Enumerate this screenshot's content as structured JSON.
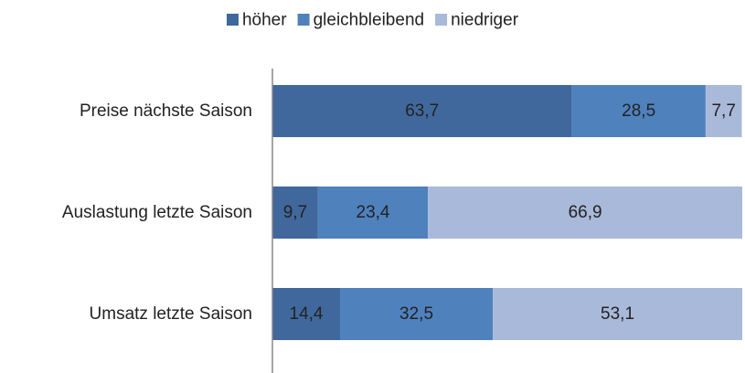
{
  "chart_data": {
    "type": "stacked_barh",
    "categories": [
      "Preise nächste Saison",
      "Auslastung letzte Saison",
      "Umsatz letzte Saison"
    ],
    "series": [
      {
        "name": "höher",
        "color": "#41689c",
        "label_color": "#ffffff",
        "values": [
          63.7,
          9.7,
          14.4
        ],
        "value_labels": [
          "63,7",
          "9,7",
          "14,4"
        ]
      },
      {
        "name": "gleichbleibend",
        "color": "#4f81bd",
        "label_color": "#ffffff",
        "values": [
          28.5,
          23.4,
          32.5
        ],
        "value_labels": [
          "28,5",
          "23,4",
          "32,5"
        ]
      },
      {
        "name": "niedriger",
        "color": "#a9b9d9",
        "label_color": "#222222",
        "values": [
          7.7,
          66.9,
          53.1
        ],
        "value_labels": [
          "7,7",
          "66,9",
          "53,1"
        ]
      }
    ],
    "xlim": [
      0,
      100
    ],
    "legend": "top"
  }
}
